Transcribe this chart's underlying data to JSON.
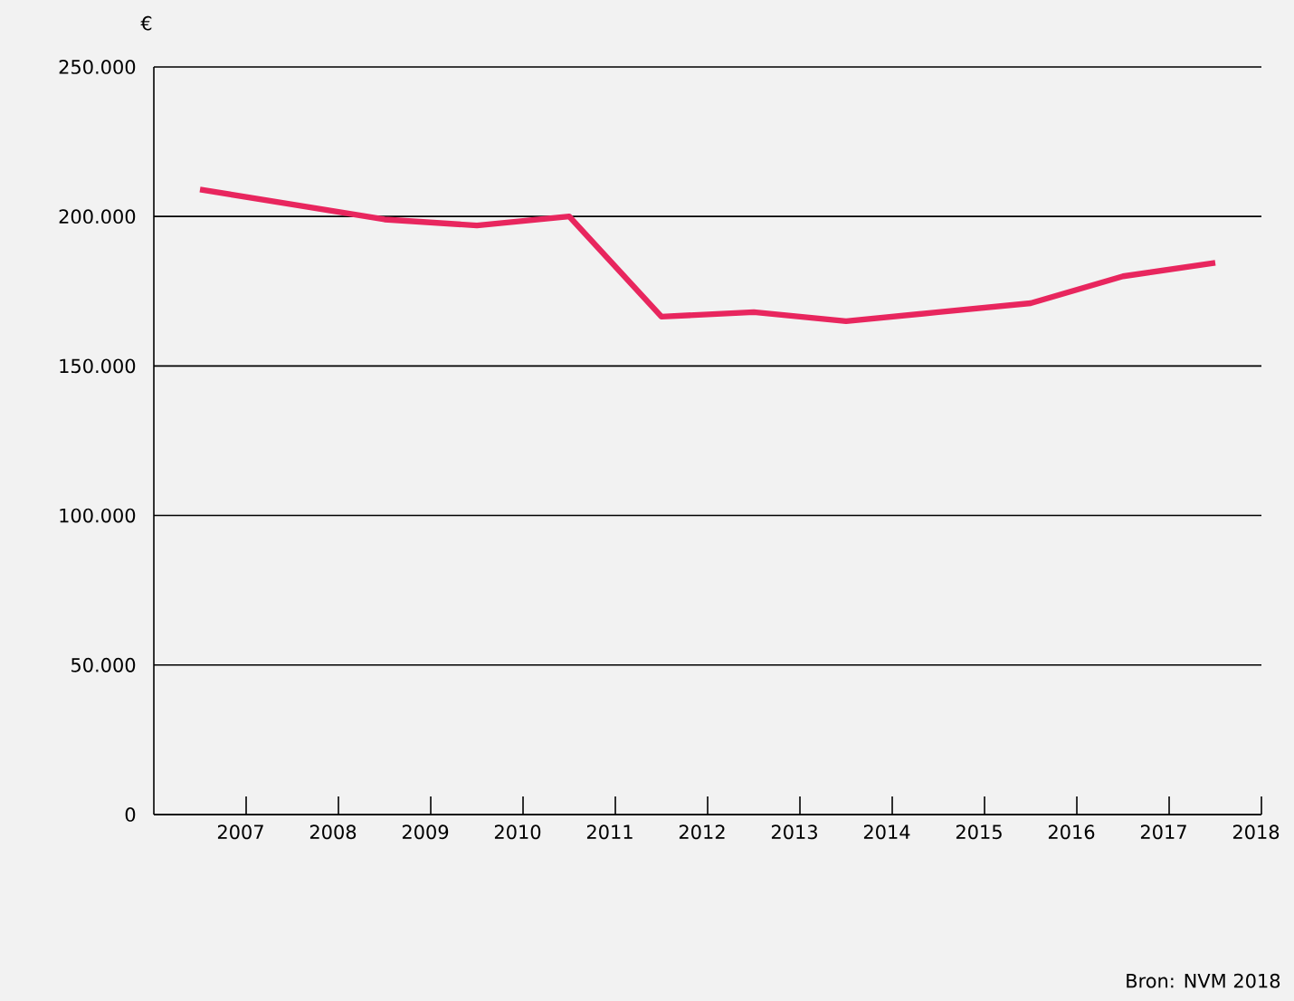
{
  "chart_data": {
    "type": "line",
    "ylabel": "€",
    "annotations": [
      "Bron: NVM 2018"
    ],
    "x": [
      2006.5,
      2007.5,
      2008.5,
      2009.5,
      2010.5,
      2011.5,
      2012.5,
      2013.5,
      2014.5,
      2015.5,
      2016.5,
      2017.5
    ],
    "series": [
      {
        "color": "#e8265e",
        "values": [
          209000,
          204000,
          199000,
          197000,
          200000,
          166500,
          168000,
          165000,
          168000,
          171000,
          180000,
          184500
        ]
      }
    ],
    "xlim": [
      2006,
      2018
    ],
    "xticks": [
      2007,
      2008,
      2009,
      2010,
      2011,
      2012,
      2013,
      2014,
      2015,
      2016,
      2017,
      2018
    ],
    "ylim": [
      0,
      250000
    ],
    "yticks": [
      {
        "value": 0,
        "label": "0"
      },
      {
        "value": 50000,
        "label": "50.000"
      },
      {
        "value": 100000,
        "label": "100.000"
      },
      {
        "value": 150000,
        "label": "150.000"
      },
      {
        "value": 200000,
        "label": "200.000"
      },
      {
        "value": 250000,
        "label": "250.000"
      }
    ],
    "grid": "y",
    "marker": "none",
    "line_style": "solid"
  }
}
